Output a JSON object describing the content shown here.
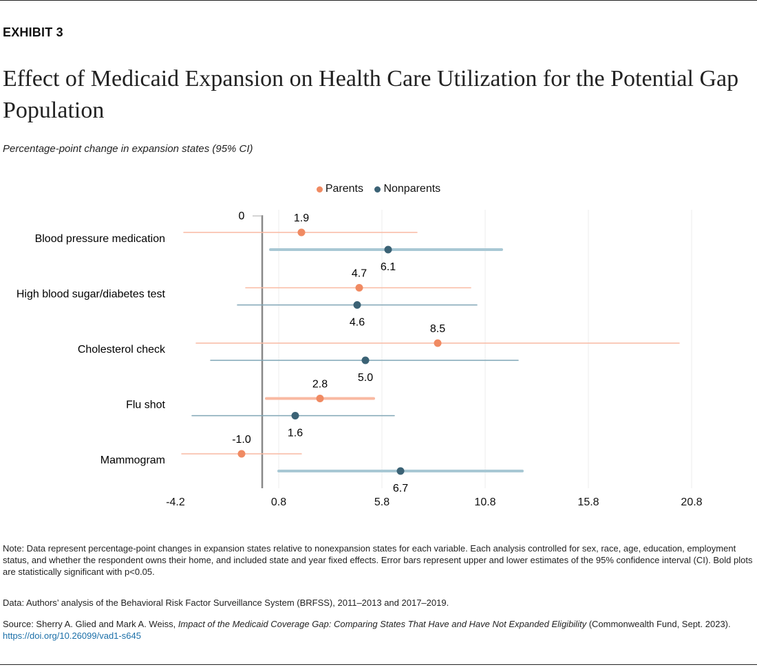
{
  "exhibit": "EXHIBIT 3",
  "title": "Effect of Medicaid Expansion on Health Care Utilization for the Potential Gap Population",
  "subtitle": "Percentage-point change in expansion states (95% CI)",
  "colors": {
    "parents": "#f08a62",
    "parents_ci": "#f9b9a2",
    "nonparents": "#3b6275",
    "nonparents_ci_bold": "#a8c8d4",
    "nonparents_ci": "#7fa5b5"
  },
  "chart_data": {
    "type": "scatter",
    "title": "Effect of Medicaid Expansion on Health Care Utilization for the Potential Gap Population",
    "subtitle": "Percentage-point change in expansion states (95% CI)",
    "legend_position": "top",
    "xlim": [
      -4.2,
      20.8
    ],
    "xticks": [
      "-4.2",
      "0.8",
      "5.8",
      "10.8",
      "15.8",
      "20.8"
    ],
    "zero_label": "0",
    "grid": true,
    "categories": [
      "Blood pressure medication",
      "High blood sugar/diabetes test",
      "Cholesterol check",
      "Flu shot",
      "Mammogram"
    ],
    "series": [
      {
        "name": "Parents",
        "values": [
          1.9,
          4.7,
          8.5,
          2.8,
          -1.0
        ],
        "labels": [
          "1.9",
          "4.7",
          "8.5",
          "2.8",
          "-1.0"
        ],
        "ci_low": [
          -3.8,
          -0.8,
          -3.2,
          0.2,
          -3.9
        ],
        "ci_high": [
          7.5,
          10.1,
          20.2,
          5.4,
          1.9
        ],
        "significant": [
          false,
          false,
          false,
          true,
          false
        ]
      },
      {
        "name": "Nonparents",
        "values": [
          6.1,
          4.6,
          5.0,
          1.6,
          6.7
        ],
        "labels": [
          "6.1",
          "4.6",
          "5.0",
          "1.6",
          "6.7"
        ],
        "ci_low": [
          0.4,
          -1.2,
          -2.5,
          -3.4,
          0.8
        ],
        "ci_high": [
          11.6,
          10.4,
          12.4,
          6.4,
          12.6
        ],
        "significant": [
          true,
          false,
          false,
          false,
          true
        ]
      }
    ]
  },
  "notes": {
    "note": "Note: Data represent percentage-point changes in expansion states relative to nonexpansion states for each variable. Each analysis controlled for sex, race, age, education, employment status, and whether the respondent owns their home, and included state and year fixed effects. Error bars represent upper and lower estimates of the 95% confidence interval (CI). Bold plots are statistically significant with p<0.05.",
    "data": "Data: Authors’ analysis of the Behavioral Risk Factor Surveillance System (BRFSS), 2011–2013 and 2017–2019.",
    "source_prefix": "Source: Sherry A. Glied and Mark A. Weiss, ",
    "source_title": "Impact of the Medicaid Coverage Gap: Comparing States That Have and Have Not Expanded Eligibility",
    "source_suffix": " (Commonwealth Fund, Sept. 2023). ",
    "link": "https://doi.org/10.26099/vad1-s645"
  }
}
